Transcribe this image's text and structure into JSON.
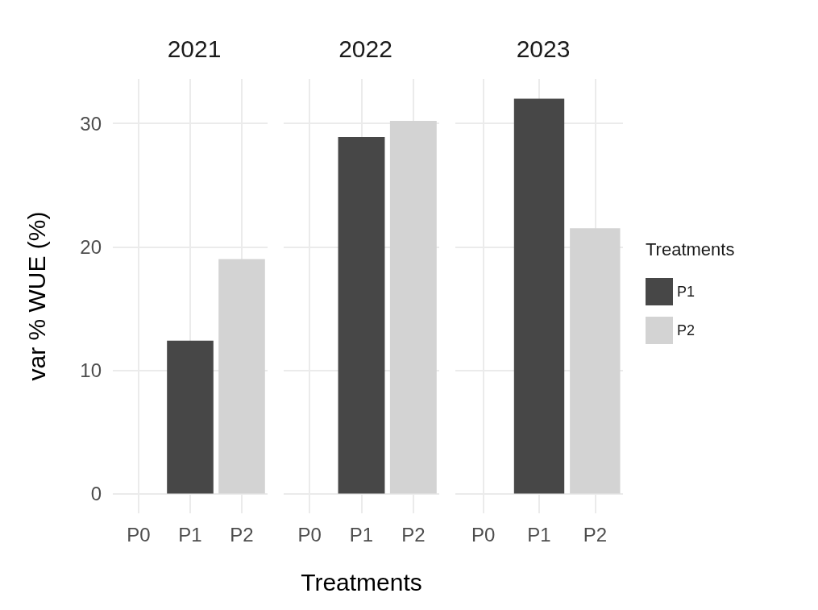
{
  "chart_data": [
    {
      "type": "bar",
      "title": "2021",
      "ylabel": "var % WUE (%)",
      "categories": [
        "P0",
        "P1",
        "P2"
      ],
      "stacked": true,
      "series": [
        {
          "color": "#474747",
          "values": [
            null,
            12.4,
            null
          ]
        },
        {
          "color": "#d3d3d3",
          "values": [
            null,
            null,
            19.0
          ]
        }
      ],
      "ylim": [
        -1.6,
        33.6
      ],
      "yticks": [
        0,
        10,
        20,
        30
      ],
      "grid": true
    },
    {
      "type": "bar",
      "title": "2022",
      "xlabel": "Treatments",
      "categories": [
        "P0",
        "P1",
        "P2"
      ],
      "stacked": true,
      "series": [
        {
          "color": "#474747",
          "values": [
            null,
            28.9,
            null
          ]
        },
        {
          "color": "#d3d3d3",
          "values": [
            null,
            null,
            30.2
          ]
        }
      ],
      "ylim": [
        -1.6,
        33.6
      ],
      "yticks": [
        0,
        10,
        20,
        30
      ],
      "grid": true,
      "tick_labels": "x"
    },
    {
      "type": "bar",
      "title": "2023",
      "legend_title": "Treatments",
      "legend": "right",
      "categories": [
        "P0",
        "P1",
        "P2"
      ],
      "stacked": true,
      "series": [
        {
          "name": "P1",
          "color": "#474747",
          "values": [
            null,
            32.0,
            null
          ]
        },
        {
          "name": "P2",
          "color": "#d3d3d3",
          "values": [
            null,
            null,
            21.5
          ]
        }
      ],
      "ylim": [
        -1.6,
        33.6
      ],
      "yticks": [
        0,
        10,
        20,
        30
      ],
      "grid": true,
      "tick_labels": "x"
    }
  ]
}
